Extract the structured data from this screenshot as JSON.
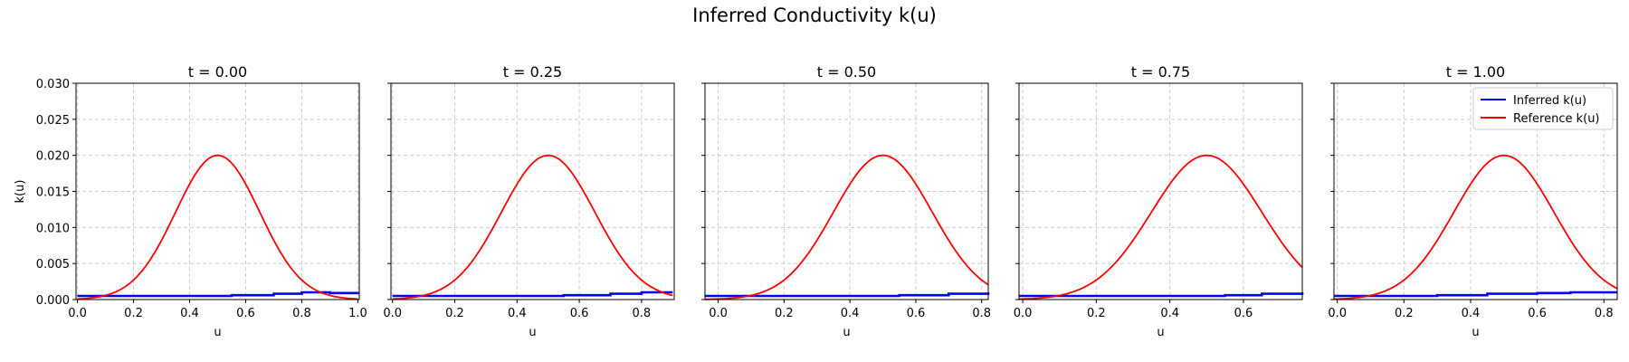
{
  "figure": {
    "title": "Inferred Conductivity k(u)"
  },
  "chart_data": [
    {
      "type": "line",
      "title": "t = 0.00",
      "xlabel": "u",
      "ylabel": "k(u)",
      "xlim": [
        -0.005,
        1.005
      ],
      "ylim": [
        0,
        0.03
      ],
      "xticks": [
        0.0,
        0.2,
        0.4,
        0.6,
        0.8,
        1.0
      ],
      "xtick_labels": [
        "0.0",
        "0.2",
        "0.4",
        "0.6",
        "0.8",
        "1.0"
      ],
      "yticks": [
        0,
        0.005,
        0.01,
        0.015,
        0.02,
        0.025,
        0.03
      ],
      "ytick_labels": [
        "0.000",
        "0.005",
        "0.010",
        "0.015",
        "0.020",
        "0.025",
        "0.030"
      ],
      "grid": true,
      "legend": null,
      "series": [
        {
          "name": "Inferred k(u)",
          "color": "#0000ff",
          "kind": "inferred",
          "x": [
            0.0,
            0.2,
            0.4,
            0.55,
            0.7,
            0.8,
            0.9,
            1.0
          ],
          "y": [
            0.0005,
            0.0005,
            0.0005,
            0.0006,
            0.0008,
            0.001,
            0.0009,
            0.0008
          ]
        },
        {
          "name": "Reference k(u)",
          "color": "#ff0000",
          "kind": "reference",
          "peak": 0.02,
          "center": 0.5,
          "width": 0.15,
          "x_range": [
            0.0,
            1.0
          ]
        }
      ]
    },
    {
      "type": "line",
      "title": "t = 0.25",
      "xlabel": "u",
      "xlim": [
        -0.005,
        0.905
      ],
      "ylim": [
        0,
        0.03
      ],
      "xticks": [
        0.0,
        0.2,
        0.4,
        0.6,
        0.8
      ],
      "xtick_labels": [
        "0.0",
        "0.2",
        "0.4",
        "0.6",
        "0.8"
      ],
      "yticks": [
        0,
        0.005,
        0.01,
        0.015,
        0.02,
        0.025,
        0.03
      ],
      "grid": true,
      "legend": null,
      "series": [
        {
          "name": "Inferred k(u)",
          "color": "#0000ff",
          "kind": "inferred",
          "x": [
            0.0,
            0.2,
            0.4,
            0.55,
            0.7,
            0.8,
            0.9
          ],
          "y": [
            0.0005,
            0.0005,
            0.0005,
            0.0006,
            0.0008,
            0.001,
            0.001
          ]
        },
        {
          "name": "Reference k(u)",
          "color": "#ff0000",
          "kind": "reference",
          "peak": 0.02,
          "center": 0.5,
          "width": 0.15,
          "x_range": [
            0.0,
            0.9
          ]
        }
      ]
    },
    {
      "type": "line",
      "title": "t = 0.50",
      "xlabel": "u",
      "xlim": [
        -0.04,
        0.82
      ],
      "ylim": [
        0,
        0.03
      ],
      "xticks": [
        0.0,
        0.2,
        0.4,
        0.6,
        0.8
      ],
      "xtick_labels": [
        "0.0",
        "0.2",
        "0.4",
        "0.6",
        "0.8"
      ],
      "yticks": [
        0,
        0.005,
        0.01,
        0.015,
        0.02,
        0.025,
        0.03
      ],
      "grid": true,
      "legend": null,
      "series": [
        {
          "name": "Inferred k(u)",
          "color": "#0000ff",
          "kind": "inferred",
          "x": [
            -0.04,
            0.2,
            0.4,
            0.55,
            0.7,
            0.82
          ],
          "y": [
            0.0005,
            0.0005,
            0.0005,
            0.0006,
            0.0008,
            0.001
          ]
        },
        {
          "name": "Reference k(u)",
          "color": "#ff0000",
          "kind": "reference",
          "peak": 0.02,
          "center": 0.5,
          "width": 0.15,
          "x_range": [
            -0.04,
            0.82
          ]
        }
      ]
    },
    {
      "type": "line",
      "title": "t = 0.75",
      "xlabel": "u",
      "xlim": [
        -0.01,
        0.76
      ],
      "ylim": [
        0,
        0.03
      ],
      "xticks": [
        0.0,
        0.2,
        0.4,
        0.6
      ],
      "xtick_labels": [
        "0.0",
        "0.2",
        "0.4",
        "0.6"
      ],
      "yticks": [
        0,
        0.005,
        0.01,
        0.015,
        0.02,
        0.025,
        0.03
      ],
      "grid": true,
      "legend": null,
      "series": [
        {
          "name": "Inferred k(u)",
          "color": "#0000ff",
          "kind": "inferred",
          "x": [
            -0.01,
            0.2,
            0.4,
            0.55,
            0.65,
            0.76
          ],
          "y": [
            0.0005,
            0.0005,
            0.0005,
            0.0006,
            0.0008,
            0.001
          ]
        },
        {
          "name": "Reference k(u)",
          "color": "#ff0000",
          "kind": "reference",
          "peak": 0.02,
          "center": 0.5,
          "width": 0.15,
          "x_range": [
            -0.01,
            0.76
          ]
        }
      ]
    },
    {
      "type": "line",
      "title": "t = 1.00",
      "xlabel": "u",
      "xlim": [
        -0.01,
        0.84
      ],
      "ylim": [
        0,
        0.03
      ],
      "xticks": [
        0.0,
        0.2,
        0.4,
        0.6,
        0.8
      ],
      "xtick_labels": [
        "0.0",
        "0.2",
        "0.4",
        "0.6",
        "0.8"
      ],
      "yticks": [
        0,
        0.005,
        0.01,
        0.015,
        0.02,
        0.025,
        0.03
      ],
      "grid": true,
      "legend": "top-right",
      "series": [
        {
          "name": "Inferred k(u)",
          "color": "#0000ff",
          "kind": "inferred",
          "x": [
            -0.01,
            0.2,
            0.3,
            0.45,
            0.6,
            0.7,
            0.84
          ],
          "y": [
            0.0005,
            0.0005,
            0.0006,
            0.0008,
            0.0009,
            0.001,
            0.001
          ]
        },
        {
          "name": "Reference k(u)",
          "color": "#ff0000",
          "kind": "reference",
          "peak": 0.02,
          "center": 0.5,
          "width": 0.15,
          "x_range": [
            -0.01,
            0.84
          ]
        }
      ]
    }
  ]
}
